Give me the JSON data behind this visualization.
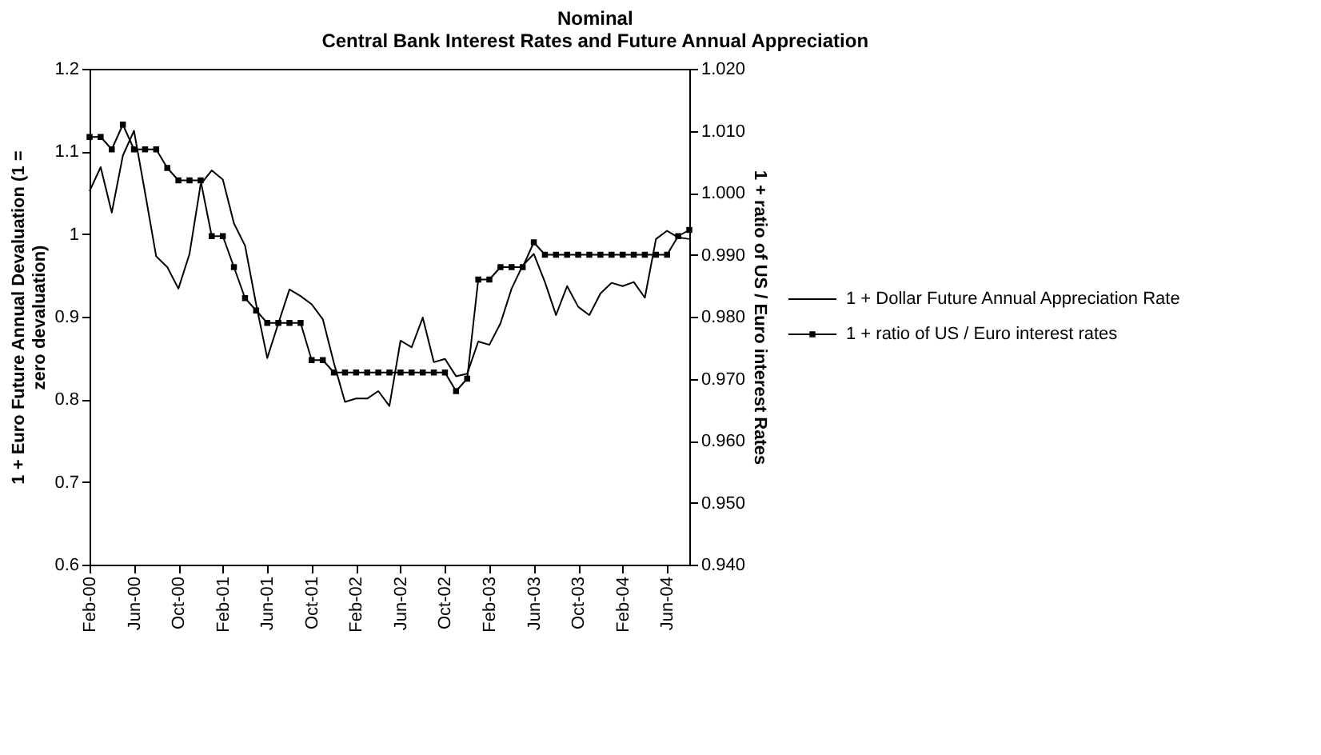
{
  "chart_data": {
    "type": "line",
    "title": "Nominal",
    "subtitle": "Central Bank Interest Rates and Future Annual Appreciation",
    "ylabel": "1 + Euro Future Annual Devaluation (1 = zero devaluation)",
    "y2label": "1 + ratio of US / Euro interest Rates",
    "categories": [
      "Feb-00",
      null,
      null,
      null,
      "Jun-00",
      null,
      null,
      null,
      "Oct-00",
      null,
      null,
      null,
      "Feb-01",
      null,
      null,
      null,
      "Jun-01",
      null,
      null,
      null,
      "Oct-01",
      null,
      null,
      null,
      "Feb-02",
      null,
      null,
      null,
      "Jun-02",
      null,
      null,
      null,
      "Oct-02",
      null,
      null,
      null,
      "Feb-03",
      null,
      null,
      null,
      "Jun-03",
      null,
      null,
      null,
      "Oct-03",
      null,
      null,
      null,
      "Feb-04",
      null,
      null,
      null,
      "Jun-04",
      null,
      null
    ],
    "ylim": [
      0.6,
      1.2
    ],
    "yticks": [
      0.6,
      0.7,
      0.8,
      0.9,
      1,
      1.1,
      1.2
    ],
    "y2lim": [
      0.94,
      1.02
    ],
    "y2ticks": [
      {
        "value": 0.94,
        "label": "0.940"
      },
      {
        "value": 0.95,
        "label": "0.950"
      },
      {
        "value": 0.96,
        "label": "0.960"
      },
      {
        "value": 0.97,
        "label": "0.970"
      },
      {
        "value": 0.98,
        "label": "0.980"
      },
      {
        "value": 0.99,
        "label": "0.990"
      },
      {
        "value": 1.0,
        "label": "1.000"
      },
      {
        "value": 1.01,
        "label": "1.010"
      },
      {
        "value": 1.02,
        "label": "1.020"
      }
    ],
    "grid": false,
    "legend": "right",
    "series": [
      {
        "name": "1 + Dollar Future Annual Appreciation Rate",
        "color": "#000000",
        "values": [
          1.052,
          1.081,
          1.026,
          1.095,
          1.125,
          1.05,
          0.973,
          0.96,
          0.934,
          0.976,
          1.06,
          1.077,
          1.066,
          1.013,
          0.986,
          0.915,
          0.85,
          0.892,
          0.933,
          0.925,
          0.915,
          0.897,
          0.844,
          0.797,
          0.801,
          0.801,
          0.81,
          0.792,
          0.871,
          0.863,
          0.899,
          0.845,
          0.849,
          0.828,
          0.831,
          0.87,
          0.866,
          0.892,
          0.934,
          0.962,
          0.976,
          0.942,
          0.902,
          0.937,
          0.912,
          0.902,
          0.928,
          0.941,
          0.937,
          0.942,
          0.923,
          0.994,
          1.004,
          0.996,
          0.994
        ]
      },
      {
        "name": "1 + ratio of US / Euro interest rates",
        "color": "#000000",
        "axis": "y2",
        "marker": "square",
        "values": [
          1.009,
          1.009,
          1.007,
          1.011,
          1.007,
          1.007,
          1.007,
          1.004,
          1.002,
          1.002,
          1.002,
          0.993,
          0.993,
          0.988,
          0.983,
          0.981,
          0.979,
          0.979,
          0.979,
          0.979,
          0.973,
          0.973,
          0.971,
          0.971,
          0.971,
          0.971,
          0.971,
          0.971,
          0.971,
          0.971,
          0.971,
          0.971,
          0.971,
          0.968,
          0.97,
          0.986,
          0.986,
          0.988,
          0.988,
          0.988,
          0.992,
          0.99,
          0.99,
          0.99,
          0.99,
          0.99,
          0.99,
          0.99,
          0.99,
          0.99,
          0.99,
          0.99,
          0.99,
          0.993,
          0.994
        ]
      }
    ]
  }
}
